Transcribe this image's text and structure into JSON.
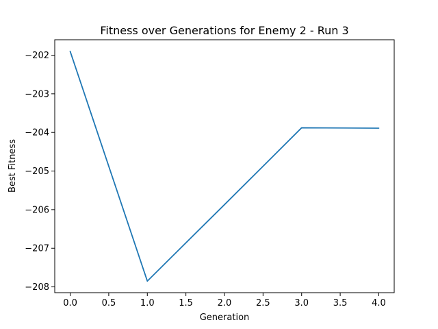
{
  "chart_data": {
    "type": "line",
    "title": "Fitness over Generations for Enemy 2 - Run 3",
    "xlabel": "Generation",
    "ylabel": "Best Fitness",
    "x": [
      0,
      1,
      2,
      3,
      4
    ],
    "series": [
      {
        "values": [
          -201.9,
          -207.85,
          -205.87,
          -203.88,
          -203.89
        ],
        "color": "#1f77b4"
      }
    ],
    "xlim": [
      -0.2,
      4.2
    ],
    "ylim": [
      -208.15,
      -201.6
    ],
    "xticks": [
      0.0,
      0.5,
      1.0,
      1.5,
      2.0,
      2.5,
      3.0,
      3.5,
      4.0
    ],
    "xtick_labels": [
      "0.0",
      "0.5",
      "1.0",
      "1.5",
      "2.0",
      "2.5",
      "3.0",
      "3.5",
      "4.0"
    ],
    "yticks": [
      -202,
      -203,
      -204,
      -205,
      -206,
      -207,
      -208
    ],
    "ytick_labels": [
      "−202",
      "−203",
      "−204",
      "−205",
      "−206",
      "−207",
      "−208"
    ],
    "grid": false,
    "legend": "none"
  }
}
